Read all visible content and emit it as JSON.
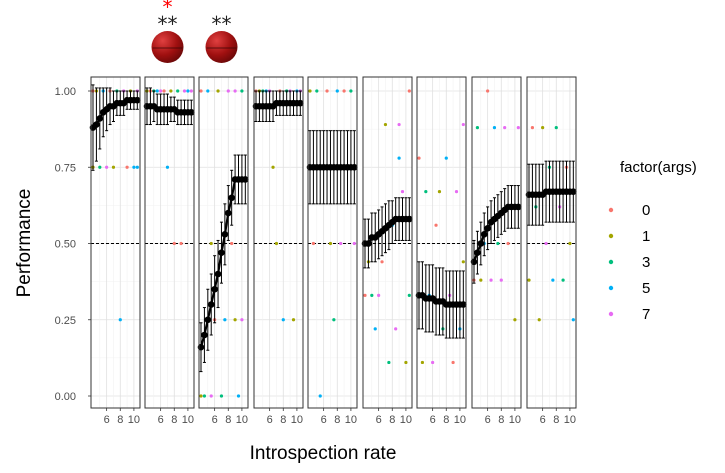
{
  "chart_data": {
    "type": "scatter",
    "xlabel": "Introspection rate",
    "ylabel": "Performance",
    "x_ticks": [
      "6",
      "8",
      "10"
    ],
    "y_ticks": [
      "0.00",
      "0.25",
      "0.50",
      "0.75",
      "1.00"
    ],
    "xlim": [
      4,
      10.6
    ],
    "ylim": [
      -0.03,
      1.04
    ],
    "reference_line": 0.5,
    "legend": {
      "title": "factor(args)",
      "entries": [
        {
          "label": "0",
          "color": "#F8766D"
        },
        {
          "label": "1",
          "color": "#A3A500"
        },
        {
          "label": "3",
          "color": "#00BF7D"
        },
        {
          "label": "5",
          "color": "#00B0F6"
        },
        {
          "label": "7",
          "color": "#E76BF3"
        }
      ]
    },
    "significance_markers": [
      {
        "panel": 2,
        "red": "*",
        "black": "**"
      },
      {
        "panel": 3,
        "red": "",
        "black": "**"
      }
    ],
    "x": [
      4,
      4.5,
      5,
      5.5,
      6,
      6.5,
      7,
      7.5,
      8,
      8.5,
      9,
      9.5,
      10,
      10.5
    ],
    "panels": [
      {
        "mean": [
          0.88,
          0.89,
          0.91,
          0.93,
          0.94,
          0.95,
          0.95,
          0.96,
          0.96,
          0.96,
          0.97,
          0.97,
          0.97,
          0.97
        ],
        "err": [
          0.14,
          0.12,
          0.1,
          0.08,
          0.07,
          0.06,
          0.05,
          0.04,
          0.04,
          0.04,
          0.03,
          0.03,
          0.03,
          0.03
        ],
        "points": [
          [
            4,
            1,
            0
          ],
          [
            4,
            0.75,
            0
          ],
          [
            4,
            0.75,
            1
          ],
          [
            4.5,
            1,
            1
          ],
          [
            5,
            0.75,
            2
          ],
          [
            5.5,
            1,
            3
          ],
          [
            6,
            0.75,
            4
          ],
          [
            6.5,
            1,
            0
          ],
          [
            7,
            0.75,
            1
          ],
          [
            7.5,
            1,
            2
          ],
          [
            8,
            0.25,
            3
          ],
          [
            8.5,
            1,
            4
          ],
          [
            9,
            0.75,
            0
          ],
          [
            9.5,
            1,
            1
          ],
          [
            10,
            0.75,
            3
          ],
          [
            10.5,
            1,
            4
          ],
          [
            10.5,
            0.75,
            3
          ]
        ]
      },
      {
        "mean": [
          0.95,
          0.95,
          0.95,
          0.94,
          0.94,
          0.94,
          0.94,
          0.94,
          0.94,
          0.93,
          0.93,
          0.93,
          0.93,
          0.93
        ],
        "err": [
          0.06,
          0.06,
          0.05,
          0.05,
          0.05,
          0.05,
          0.05,
          0.04,
          0.04,
          0.04,
          0.04,
          0.04,
          0.04,
          0.04
        ],
        "points": [
          [
            4,
            1,
            1
          ],
          [
            4.5,
            1,
            0
          ],
          [
            5,
            1,
            2
          ],
          [
            5.5,
            1,
            3
          ],
          [
            6,
            1,
            4
          ],
          [
            6.5,
            1,
            0
          ],
          [
            7,
            0.75,
            3
          ],
          [
            7.5,
            1,
            1
          ],
          [
            8,
            0.5,
            0
          ],
          [
            8.5,
            1,
            2
          ],
          [
            9,
            0.5,
            0
          ],
          [
            9.5,
            1,
            4
          ],
          [
            10,
            1,
            3
          ],
          [
            10.5,
            1,
            4
          ]
        ]
      },
      {
        "mean": [
          0.16,
          0.2,
          0.25,
          0.3,
          0.35,
          0.4,
          0.47,
          0.53,
          0.6,
          0.65,
          0.71,
          0.71,
          0.71,
          0.71
        ],
        "err": [
          0.08,
          0.09,
          0.1,
          0.1,
          0.11,
          0.11,
          0.1,
          0.1,
          0.09,
          0.09,
          0.08,
          0.08,
          0.08,
          0.08
        ],
        "points": [
          [
            4,
            1,
            0
          ],
          [
            4,
            0,
            1
          ],
          [
            4.5,
            0,
            2
          ],
          [
            5,
            1,
            3
          ],
          [
            5.5,
            0,
            4
          ],
          [
            5.5,
            0.5,
            1
          ],
          [
            6,
            0.25,
            0
          ],
          [
            6.5,
            1,
            1
          ],
          [
            7,
            0,
            2
          ],
          [
            7.5,
            0.25,
            3
          ],
          [
            8,
            1,
            4
          ],
          [
            8.5,
            0.5,
            0
          ],
          [
            9,
            0.25,
            1
          ],
          [
            9,
            1,
            4
          ],
          [
            9.5,
            0,
            3
          ],
          [
            10,
            1,
            2
          ],
          [
            10,
            0.25,
            4
          ]
        ]
      },
      {
        "mean": [
          0.95,
          0.95,
          0.95,
          0.95,
          0.95,
          0.95,
          0.96,
          0.96,
          0.96,
          0.96,
          0.96,
          0.96,
          0.96,
          0.96
        ],
        "err": [
          0.05,
          0.05,
          0.05,
          0.05,
          0.05,
          0.05,
          0.04,
          0.04,
          0.04,
          0.04,
          0.04,
          0.04,
          0.04,
          0.04
        ],
        "points": [
          [
            4,
            1,
            0
          ],
          [
            4.5,
            1,
            1
          ],
          [
            5,
            1,
            2
          ],
          [
            5.5,
            1,
            3
          ],
          [
            6,
            1,
            4
          ],
          [
            6.5,
            0.75,
            1
          ],
          [
            7,
            0.5,
            1
          ],
          [
            7.5,
            1,
            0
          ],
          [
            8,
            0.25,
            3
          ],
          [
            8.5,
            1,
            2
          ],
          [
            9,
            1,
            4
          ],
          [
            9.5,
            0.25,
            1
          ],
          [
            10,
            1,
            3
          ],
          [
            10.5,
            1,
            4
          ]
        ]
      },
      {
        "mean": [
          0.75,
          0.75,
          0.75,
          0.75,
          0.75,
          0.75,
          0.75,
          0.75,
          0.75,
          0.75,
          0.75,
          0.75,
          0.75,
          0.75
        ],
        "err": [
          0.12,
          0.12,
          0.12,
          0.12,
          0.12,
          0.12,
          0.12,
          0.12,
          0.12,
          0.12,
          0.12,
          0.12,
          0.12,
          0.12
        ],
        "points": [
          [
            4,
            1,
            1
          ],
          [
            4.5,
            0.5,
            0
          ],
          [
            5,
            1,
            2
          ],
          [
            5.5,
            0,
            3
          ],
          [
            6,
            0.75,
            4
          ],
          [
            6.5,
            1,
            0
          ],
          [
            7,
            0.5,
            1
          ],
          [
            7.5,
            0.25,
            2
          ],
          [
            8,
            1,
            3
          ],
          [
            8.5,
            0.5,
            4
          ],
          [
            9,
            1,
            0
          ],
          [
            9.5,
            0.75,
            1
          ],
          [
            10,
            1,
            2
          ],
          [
            10.5,
            0.5,
            4
          ]
        ]
      },
      {
        "mean": [
          0.5,
          0.5,
          0.52,
          0.52,
          0.53,
          0.54,
          0.55,
          0.56,
          0.57,
          0.58,
          0.58,
          0.58,
          0.58,
          0.58
        ],
        "err": [
          0.08,
          0.08,
          0.08,
          0.08,
          0.08,
          0.08,
          0.08,
          0.08,
          0.07,
          0.07,
          0.07,
          0.07,
          0.07,
          0.07
        ],
        "points": [
          [
            4,
            0.33,
            0
          ],
          [
            4.5,
            0.44,
            1
          ],
          [
            5,
            0.33,
            2
          ],
          [
            5.5,
            0.22,
            3
          ],
          [
            6,
            0.33,
            4
          ],
          [
            6.5,
            0.44,
            0
          ],
          [
            7,
            0.89,
            1
          ],
          [
            7.5,
            0.11,
            2
          ],
          [
            8,
            0.56,
            3
          ],
          [
            8.5,
            0.22,
            4
          ],
          [
            9,
            0.78,
            3
          ],
          [
            9.5,
            0.67,
            4
          ],
          [
            10,
            0.11,
            1
          ],
          [
            10.5,
            0.33,
            2
          ],
          [
            10.5,
            1,
            0
          ],
          [
            9,
            0.89,
            4
          ]
        ]
      },
      {
        "mean": [
          0.33,
          0.33,
          0.32,
          0.32,
          0.32,
          0.31,
          0.31,
          0.31,
          0.3,
          0.3,
          0.3,
          0.3,
          0.3,
          0.3
        ],
        "err": [
          0.11,
          0.11,
          0.11,
          0.11,
          0.11,
          0.11,
          0.11,
          0.11,
          0.11,
          0.11,
          0.11,
          0.11,
          0.11,
          0.11
        ],
        "points": [
          [
            4,
            0.78,
            0
          ],
          [
            4.5,
            0.11,
            1
          ],
          [
            5,
            0.67,
            2
          ],
          [
            5.5,
            0.33,
            3
          ],
          [
            6,
            0.11,
            4
          ],
          [
            6.5,
            0.56,
            0
          ],
          [
            7,
            0.67,
            1
          ],
          [
            7.5,
            0.22,
            2
          ],
          [
            8,
            0.78,
            3
          ],
          [
            8.5,
            0.33,
            4
          ],
          [
            9,
            0.11,
            0
          ],
          [
            9.5,
            0.67,
            4
          ],
          [
            10,
            0.22,
            3
          ],
          [
            10.5,
            0.44,
            1
          ],
          [
            10.5,
            0.89,
            4
          ]
        ]
      },
      {
        "mean": [
          0.44,
          0.47,
          0.5,
          0.53,
          0.55,
          0.57,
          0.58,
          0.59,
          0.6,
          0.61,
          0.62,
          0.62,
          0.62,
          0.62
        ],
        "err": [
          0.07,
          0.07,
          0.07,
          0.07,
          0.07,
          0.07,
          0.07,
          0.07,
          0.07,
          0.07,
          0.07,
          0.07,
          0.07,
          0.07
        ],
        "points": [
          [
            4,
            0.38,
            0
          ],
          [
            4.5,
            0.88,
            2
          ],
          [
            5,
            0.38,
            1
          ],
          [
            5.5,
            0.5,
            3
          ],
          [
            6,
            1,
            0
          ],
          [
            6.5,
            0.38,
            4
          ],
          [
            7,
            0.88,
            3
          ],
          [
            7.5,
            0.5,
            2
          ],
          [
            8,
            0.38,
            4
          ],
          [
            8.5,
            0.88,
            4
          ],
          [
            9,
            0.5,
            0
          ],
          [
            9.5,
            0.62,
            3
          ],
          [
            10,
            0.25,
            1
          ],
          [
            10.5,
            0.88,
            4
          ]
        ]
      },
      {
        "mean": [
          0.66,
          0.66,
          0.66,
          0.66,
          0.66,
          0.67,
          0.67,
          0.67,
          0.67,
          0.67,
          0.67,
          0.67,
          0.67,
          0.67
        ],
        "err": [
          0.1,
          0.1,
          0.1,
          0.1,
          0.1,
          0.1,
          0.1,
          0.1,
          0.1,
          0.1,
          0.1,
          0.1,
          0.1,
          0.1
        ],
        "points": [
          [
            4,
            0.38,
            1
          ],
          [
            4.5,
            0.88,
            0
          ],
          [
            5,
            0.62,
            2
          ],
          [
            5.5,
            0.25,
            1
          ],
          [
            6,
            0.88,
            1
          ],
          [
            6.5,
            0.5,
            4
          ],
          [
            7,
            0.75,
            2
          ],
          [
            7.5,
            0.38,
            3
          ],
          [
            8,
            0.88,
            2
          ],
          [
            8.5,
            0.62,
            4
          ],
          [
            9,
            0.38,
            2
          ],
          [
            9.5,
            0.75,
            0
          ],
          [
            10,
            0.5,
            1
          ],
          [
            10.5,
            0.25,
            3
          ]
        ]
      }
    ]
  }
}
